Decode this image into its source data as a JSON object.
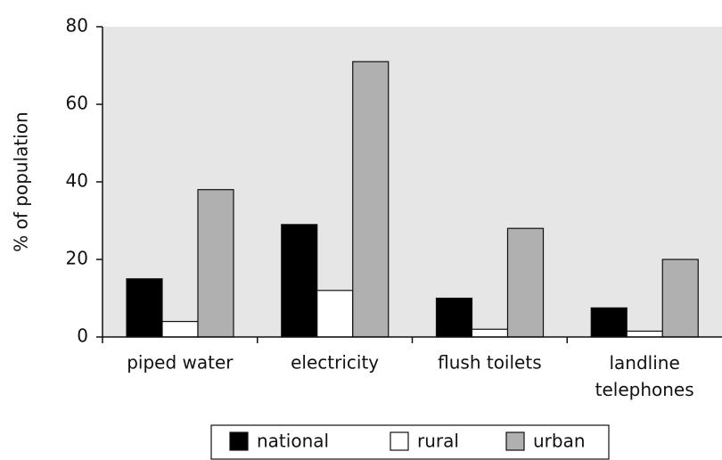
{
  "chart_data": {
    "type": "bar",
    "y_label": "% of population",
    "categories": [
      "piped water",
      "electricity",
      "flush toilets",
      "landline telephones"
    ],
    "series": [
      {
        "name": "national",
        "color": "#000000",
        "values": [
          15,
          29,
          10,
          7.5
        ]
      },
      {
        "name": "rural",
        "color": "#ffffff",
        "values": [
          4,
          12,
          2,
          1.5
        ]
      },
      {
        "name": "urban",
        "color": "#b0b0b0",
        "values": [
          38,
          71,
          28,
          20
        ]
      }
    ],
    "ylim": [
      0,
      80
    ],
    "yticks": [
      0,
      20,
      40,
      60,
      80
    ],
    "legend": "bottom"
  }
}
